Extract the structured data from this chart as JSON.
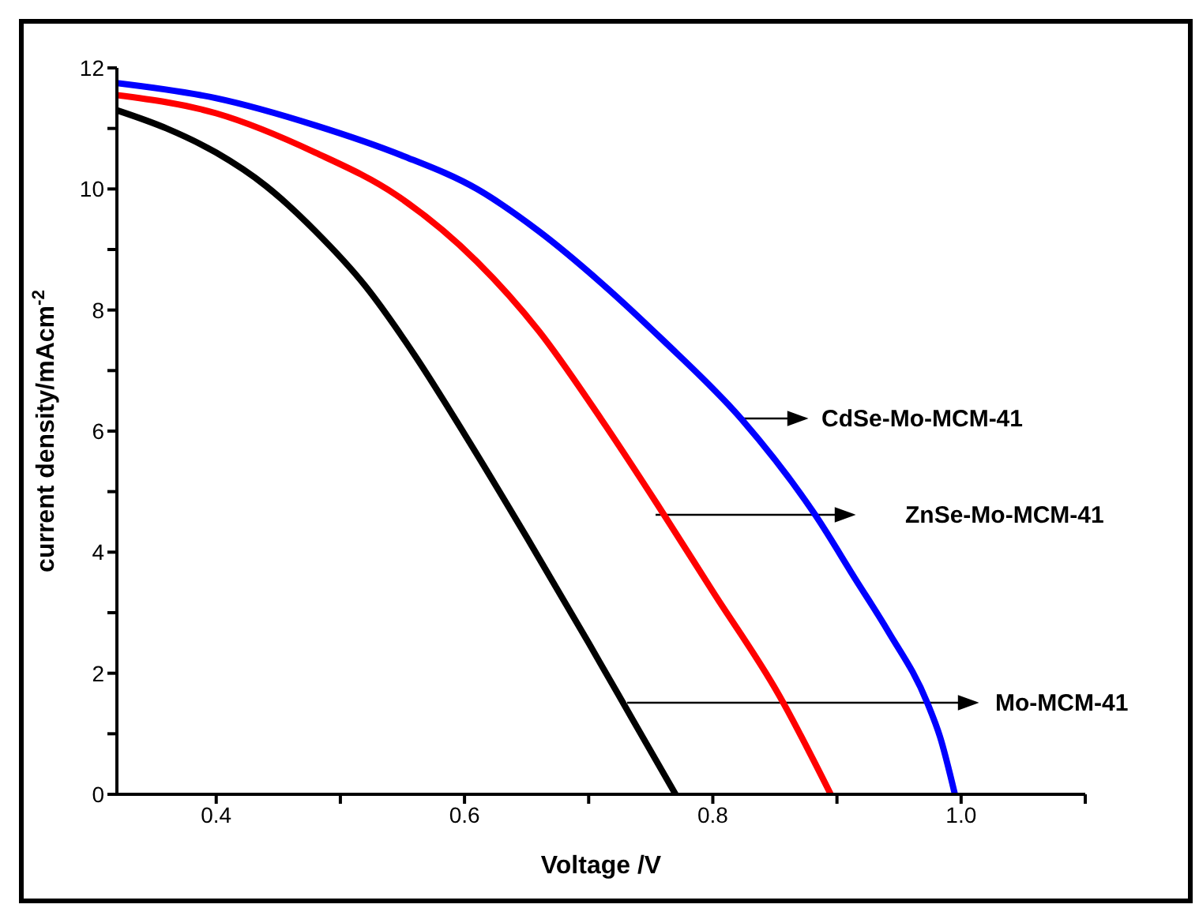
{
  "chart_data": {
    "type": "line",
    "xlabel": "Voltage /V",
    "ylabel": "current density/mAcm$^{-2}$",
    "xlim": [
      0.32,
      1.1
    ],
    "ylim": [
      0,
      12
    ],
    "xticks": [
      0.4,
      {
        "value": 0.5,
        "label": null
      },
      0.6,
      {
        "value": 0.7,
        "label": null
      },
      0.8,
      {
        "value": 0.9,
        "label": null
      },
      {
        "value": 1,
        "label": "1.0"
      },
      {
        "value": 1.1,
        "label": null
      }
    ],
    "yticks": [
      0,
      {
        "value": 1,
        "label": null
      },
      2,
      {
        "value": 3,
        "label": null
      },
      4,
      {
        "value": 5,
        "label": null
      },
      6,
      {
        "value": 7,
        "label": null
      },
      8,
      {
        "value": 9,
        "label": null
      },
      10,
      {
        "value": 11,
        "label": null
      },
      12
    ],
    "annotations": [
      "Mo-MCM-41",
      "ZnSe-Mo-MCM-41",
      "CdSe-Mo-MCM-41"
    ],
    "series": [
      {
        "color": "#000000",
        "x": [
          0.32,
          0.36,
          0.4,
          0.44,
          0.48,
          0.52,
          0.56,
          0.6,
          0.65,
          0.7,
          0.735,
          0.77
        ],
        "values": [
          11.3,
          11.0,
          10.6,
          10.05,
          9.3,
          8.4,
          7.25,
          5.95,
          4.25,
          2.5,
          1.25,
          0
        ]
      },
      {
        "color": "#ff0000",
        "x": [
          0.32,
          0.4,
          0.48,
          0.545,
          0.61,
          0.66,
          0.71,
          0.755,
          0.8,
          0.853,
          0.895
        ],
        "values": [
          11.55,
          11.25,
          10.6,
          9.9,
          8.8,
          7.65,
          6.2,
          4.8,
          3.35,
          1.65,
          0
        ]
      },
      {
        "color": "#0000ff",
        "x": [
          0.32,
          0.4,
          0.48,
          0.55,
          0.61,
          0.66,
          0.71,
          0.76,
          0.823,
          0.883,
          0.915,
          0.941,
          0.973,
          0.983,
          0.995
        ],
        "values": [
          11.75,
          11.5,
          11.05,
          10.55,
          10.0,
          9.3,
          8.45,
          7.5,
          6.2,
          4.6,
          3.55,
          2.7,
          1.5,
          0.95,
          0
        ]
      }
    ]
  }
}
